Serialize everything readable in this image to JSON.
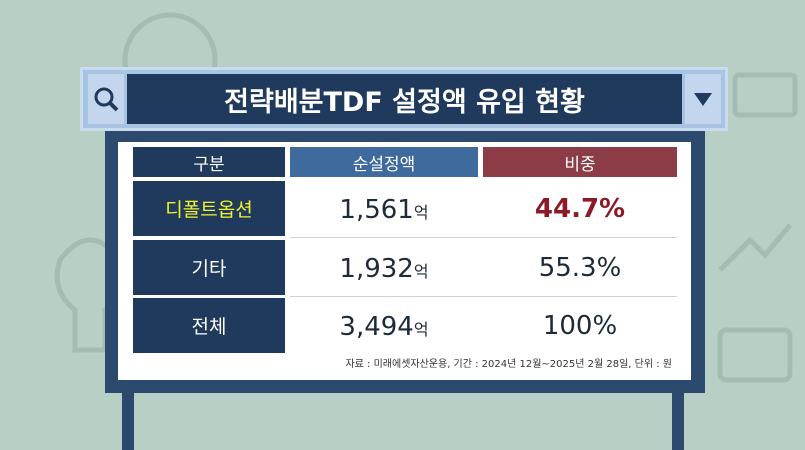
{
  "header": {
    "title": "전략배분TDF 설정액 유입 현황"
  },
  "table": {
    "columns": [
      "구분",
      "순설정액",
      "비중"
    ],
    "rows": [
      {
        "label": "디폴트옵션",
        "amount": "1,561",
        "unit": "억",
        "share": "44.7%"
      },
      {
        "label": "기타",
        "amount": "1,932",
        "unit": "억",
        "share": "55.3%"
      },
      {
        "label": "전체",
        "amount": "3,494",
        "unit": "억",
        "share": "100%"
      }
    ]
  },
  "source": "자료 : 미래에셋자산운용, 기간 : 2024년 12월~2025년 2월 28일, 단위 : 원"
}
